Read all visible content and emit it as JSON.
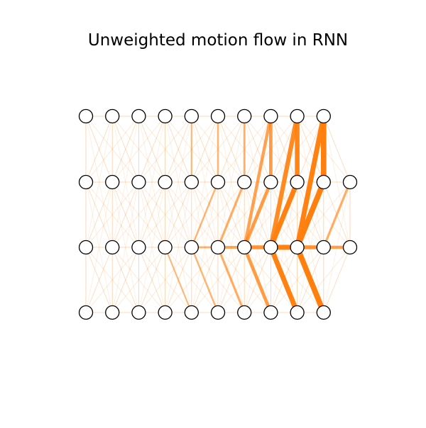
{
  "title": "Unweighted motion flow in RNN",
  "colors": {
    "edge": "#ff7f0e",
    "node_fill": "#ffffff",
    "node_stroke": "#000000",
    "background": "#ffffff"
  },
  "layers": [
    {
      "row": 0,
      "node_count": 10
    },
    {
      "row": 1,
      "node_count": 11
    },
    {
      "row": 2,
      "node_count": 11
    },
    {
      "row": 3,
      "node_count": 10
    }
  ],
  "strong_edges": [
    {
      "from": [
        0,
        7
      ],
      "to": [
        1,
        7
      ],
      "weight": 1.0
    },
    {
      "from": [
        0,
        8
      ],
      "to": [
        1,
        8
      ],
      "weight": 1.5
    },
    {
      "from": [
        0,
        9
      ],
      "to": [
        1,
        9
      ],
      "weight": 1.8
    },
    {
      "from": [
        0,
        6
      ],
      "to": [
        1,
        6
      ],
      "weight": 0.5
    },
    {
      "from": [
        0,
        5
      ],
      "to": [
        1,
        5
      ],
      "weight": 0.4
    },
    {
      "from": [
        0,
        4
      ],
      "to": [
        1,
        4
      ],
      "weight": 0.3
    },
    {
      "from": [
        1,
        7
      ],
      "to": [
        2,
        6
      ],
      "weight": 1.0
    },
    {
      "from": [
        1,
        8
      ],
      "to": [
        2,
        7
      ],
      "weight": 1.6
    },
    {
      "from": [
        1,
        9
      ],
      "to": [
        2,
        8
      ],
      "weight": 1.8
    },
    {
      "from": [
        1,
        10
      ],
      "to": [
        2,
        9
      ],
      "weight": 0.6
    },
    {
      "from": [
        1,
        6
      ],
      "to": [
        2,
        5
      ],
      "weight": 0.6
    },
    {
      "from": [
        1,
        5
      ],
      "to": [
        2,
        4
      ],
      "weight": 0.4
    },
    {
      "from": [
        0,
        7
      ],
      "to": [
        2,
        6
      ],
      "weight": 0.9
    },
    {
      "from": [
        0,
        8
      ],
      "to": [
        2,
        7
      ],
      "weight": 1.4
    },
    {
      "from": [
        0,
        9
      ],
      "to": [
        2,
        8
      ],
      "weight": 1.6
    },
    {
      "from": [
        2,
        4
      ],
      "to": [
        2,
        5
      ],
      "weight": 0.5
    },
    {
      "from": [
        2,
        5
      ],
      "to": [
        2,
        6
      ],
      "weight": 0.8
    },
    {
      "from": [
        2,
        6
      ],
      "to": [
        2,
        7
      ],
      "weight": 1.2
    },
    {
      "from": [
        2,
        7
      ],
      "to": [
        2,
        8
      ],
      "weight": 1.6
    },
    {
      "from": [
        2,
        8
      ],
      "to": [
        2,
        9
      ],
      "weight": 1.2
    },
    {
      "from": [
        2,
        9
      ],
      "to": [
        2,
        10
      ],
      "weight": 0.9
    },
    {
      "from": [
        2,
        6
      ],
      "to": [
        3,
        7
      ],
      "weight": 1.0
    },
    {
      "from": [
        2,
        7
      ],
      "to": [
        3,
        8
      ],
      "weight": 1.6
    },
    {
      "from": [
        2,
        8
      ],
      "to": [
        3,
        9
      ],
      "weight": 1.8
    },
    {
      "from": [
        2,
        5
      ],
      "to": [
        3,
        6
      ],
      "weight": 0.6
    },
    {
      "from": [
        2,
        4
      ],
      "to": [
        3,
        5
      ],
      "weight": 0.4
    },
    {
      "from": [
        2,
        3
      ],
      "to": [
        3,
        4
      ],
      "weight": 0.3
    }
  ]
}
